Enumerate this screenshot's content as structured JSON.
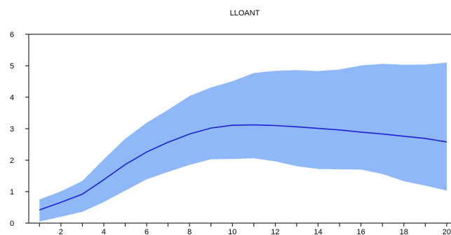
{
  "chart_data": {
    "type": "area",
    "title": "LLOANT",
    "xlabel": "",
    "ylabel": "",
    "xlim": [
      0.5,
      20.2
    ],
    "ylim": [
      0,
      6
    ],
    "x_ticks": [
      1,
      2,
      3,
      4,
      5,
      6,
      7,
      8,
      9,
      10,
      11,
      12,
      13,
      14,
      15,
      16,
      17,
      18,
      19,
      20
    ],
    "x_tick_labels": [
      "2",
      "4",
      "6",
      "8",
      "10",
      "12",
      "14",
      "16",
      "18",
      "20"
    ],
    "x_tick_label_values": [
      2,
      4,
      6,
      8,
      10,
      12,
      14,
      16,
      18,
      20
    ],
    "y_ticks": [
      0,
      1,
      2,
      3,
      4,
      5,
      6
    ],
    "y_tick_labels": [
      "0",
      "1",
      "2",
      "3",
      "4",
      "5",
      "6"
    ],
    "grid": false,
    "x": [
      1,
      2,
      3,
      4,
      5,
      6,
      7,
      8,
      9,
      10,
      11,
      12,
      13,
      14,
      15,
      16,
      17,
      18,
      19,
      20
    ],
    "series": [
      {
        "role": "response",
        "values": [
          0.42,
          0.66,
          0.92,
          1.38,
          1.86,
          2.26,
          2.57,
          2.83,
          3.02,
          3.11,
          3.12,
          3.1,
          3.06,
          3.01,
          2.96,
          2.89,
          2.83,
          2.76,
          2.69,
          2.58
        ],
        "color": "#1f1fd6"
      },
      {
        "role": "confidence band upper",
        "values": [
          0.75,
          1.01,
          1.34,
          2.03,
          2.68,
          3.19,
          3.6,
          4.04,
          4.31,
          4.51,
          4.77,
          4.84,
          4.86,
          4.83,
          4.88,
          5.01,
          5.06,
          5.03,
          5.04,
          5.1
        ]
      },
      {
        "role": "confidence band lower",
        "values": [
          0.05,
          0.2,
          0.36,
          0.67,
          1.03,
          1.39,
          1.63,
          1.85,
          2.03,
          2.04,
          2.06,
          1.96,
          1.81,
          1.72,
          1.71,
          1.7,
          1.56,
          1.33,
          1.19,
          1.03
        ]
      }
    ],
    "band_color": "#8fb8f8"
  }
}
